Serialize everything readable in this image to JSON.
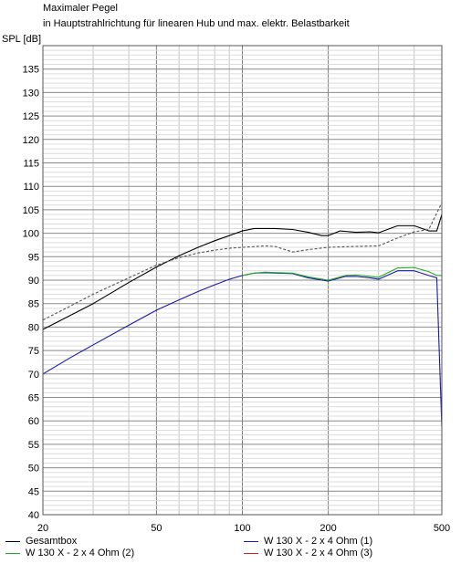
{
  "header": {
    "title": "Maximaler Pegel",
    "subtitle": "in Hauptstrahlrichtung für linearen Hub und max. elektr. Belastbarkeit",
    "ylabel": "SPL [dB]"
  },
  "legend": [
    {
      "label": "Gesamtbox",
      "color": "#000000"
    },
    {
      "label": "W 130 X - 2 x 4 Ohm (1)",
      "color": "#1a1aa6"
    },
    {
      "label": "W 130 X - 2 x 4 Ohm (2)",
      "color": "#22aa22"
    },
    {
      "label": "W 130 X - 2 x 4 Ohm (3)",
      "color": "#cc2222"
    }
  ],
  "chart_data": {
    "type": "line",
    "title": "Maximaler Pegel",
    "subtitle": "in Hauptstrahlrichtung für linearen Hub und max. elektr. Belastbarkeit",
    "ylabel": "SPL [dB]",
    "xscale": "log",
    "xlim": [
      20,
      500
    ],
    "ylim": [
      40,
      140
    ],
    "xticks": [
      20,
      50,
      100,
      200,
      500
    ],
    "yticks": [
      40,
      45,
      50,
      55,
      60,
      65,
      70,
      75,
      80,
      85,
      90,
      95,
      100,
      105,
      110,
      115,
      120,
      125,
      130,
      135
    ],
    "grid": true,
    "legend_position": "bottom",
    "series": [
      {
        "name": "Gesamtbox",
        "color": "#000000",
        "dash": "solid",
        "x": [
          20,
          25,
          30,
          40,
          50,
          60,
          70,
          80,
          90,
          100,
          110,
          130,
          150,
          170,
          190,
          200,
          220,
          250,
          280,
          300,
          350,
          400,
          450,
          480,
          500
        ],
        "y": [
          79.5,
          82.5,
          85,
          89.5,
          92.8,
          95.2,
          97,
          98.4,
          99.5,
          100.5,
          101,
          101,
          100.8,
          100.2,
          99.5,
          99.5,
          100.5,
          100.2,
          100.3,
          100.1,
          101.6,
          101.6,
          100.5,
          100.5,
          104
        ]
      },
      {
        "name": "",
        "color": "#555555",
        "dash": "dashed",
        "x": [
          20,
          25,
          30,
          40,
          50,
          60,
          70,
          80,
          90,
          100,
          120,
          130,
          150,
          170,
          200,
          250,
          300,
          350,
          400,
          450,
          500
        ],
        "y": [
          81.5,
          84.5,
          87,
          90.5,
          93.2,
          94.8,
          95.8,
          96.4,
          96.8,
          97,
          97.3,
          97.2,
          96,
          96.5,
          97,
          97.2,
          97.3,
          99,
          100.3,
          100.8,
          106.5
        ]
      },
      {
        "name": "W 130 X - 2 x 4 Ohm (1)",
        "color": "#1a1aa6",
        "dash": "solid",
        "x": [
          20,
          25,
          30,
          40,
          50,
          60,
          70,
          80,
          90,
          100,
          110,
          120,
          150,
          170,
          200,
          230,
          250,
          280,
          300,
          350,
          400,
          450,
          480,
          500
        ],
        "y": [
          70,
          73.5,
          76.2,
          80.4,
          83.6,
          85.8,
          87.6,
          89,
          90.2,
          91,
          91.5,
          91.6,
          91.4,
          90.5,
          89.8,
          90.8,
          90.8,
          90.5,
          90.2,
          92,
          92,
          91,
          90.5,
          58.5
        ]
      },
      {
        "name": "W 130 X - 2 x 4 Ohm (2)",
        "color": "#22aa22",
        "dash": "solid",
        "x": [
          100,
          110,
          120,
          150,
          170,
          200,
          230,
          250,
          280,
          300,
          350,
          400,
          450,
          480,
          500
        ],
        "y": [
          91,
          91.5,
          91.7,
          91.5,
          90.7,
          90,
          91,
          91.1,
          90.8,
          90.6,
          92.6,
          92.7,
          91.8,
          91,
          91
        ]
      },
      {
        "name": "W 130 X - 2 x 4 Ohm (3)",
        "color": "#cc2222",
        "dash": "solid",
        "x": [],
        "y": []
      }
    ]
  }
}
